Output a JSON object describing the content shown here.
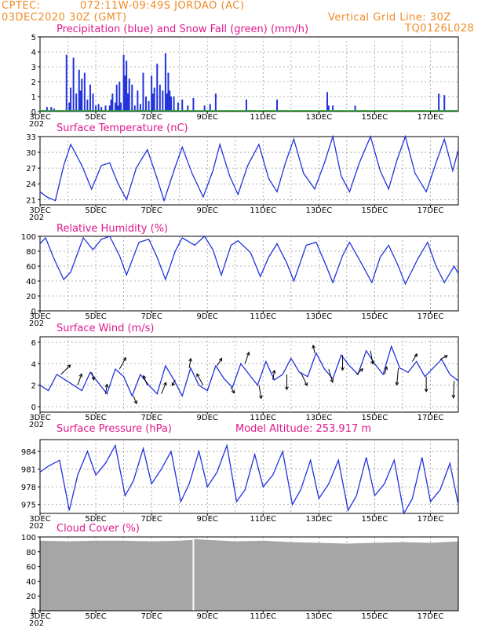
{
  "header": {
    "source": "CPTEC:",
    "location": "072:11W-09:49S  JORDAO (AC)",
    "date": "03DEC2020 30Z (GMT)",
    "grid_note": "Vertical Grid Line: 30Z",
    "code": "TQ0126L028"
  },
  "x_axis": {
    "labels": [
      "3DEC",
      "5DEC",
      "7DEC",
      "9DEC",
      "11DEC",
      "13DEC",
      "15DEC",
      "17DEC"
    ],
    "start_day": 3,
    "end_day": 18,
    "stub_label": "202"
  },
  "colors": {
    "line": "#2233dd",
    "bar": "#2233dd",
    "snow": "#22aa22",
    "cloud": "#a6a6a6",
    "title": "#e0188c",
    "header": "#f08a24",
    "arrow": "#000000"
  },
  "chart_data": [
    {
      "id": "precip",
      "type": "bar",
      "title": "Precipitation (blue) and Snow Fall (green) (mm/h)",
      "ylim": [
        0,
        5
      ],
      "yticks": [
        0,
        1,
        2,
        3,
        4,
        5
      ],
      "x": [
        3.1,
        3.25,
        3.4,
        3.5,
        3.95,
        4.05,
        4.1,
        4.2,
        4.3,
        4.4,
        4.45,
        4.5,
        4.6,
        4.7,
        4.8,
        4.9,
        5.0,
        5.1,
        5.2,
        5.35,
        5.5,
        5.55,
        5.6,
        5.7,
        5.75,
        5.8,
        5.85,
        5.9,
        6.0,
        6.05,
        6.1,
        6.15,
        6.2,
        6.3,
        6.4,
        6.5,
        6.6,
        6.7,
        6.8,
        6.9,
        7.0,
        7.05,
        7.1,
        7.2,
        7.3,
        7.4,
        7.5,
        7.55,
        7.6,
        7.65,
        7.7,
        7.8,
        7.95,
        8.1,
        8.3,
        8.5,
        8.9,
        9.1,
        9.3,
        10.4,
        11.5,
        13.3,
        13.35,
        13.5,
        14.3,
        17.3,
        17.5
      ],
      "values": [
        0.1,
        0.3,
        0.3,
        0.2,
        3.8,
        0.6,
        1.6,
        3.6,
        1.2,
        2.8,
        1.4,
        2.2,
        2.6,
        0.8,
        1.8,
        1.2,
        0.4,
        0.5,
        0.3,
        0.4,
        0.4,
        0.8,
        1.2,
        0.6,
        1.8,
        0.4,
        2.0,
        0.6,
        3.8,
        2.4,
        3.4,
        1.2,
        2.2,
        1.8,
        0.4,
        1.4,
        0.5,
        2.6,
        1.0,
        0.7,
        2.4,
        1.2,
        1.6,
        3.2,
        1.8,
        1.4,
        3.9,
        1.2,
        2.6,
        1.4,
        1.0,
        1.0,
        0.6,
        0.8,
        0.4,
        0.9,
        0.4,
        0.5,
        1.2,
        0.8,
        0.8,
        1.3,
        0.4,
        0.4,
        0.4,
        1.2,
        1.1
      ],
      "snow": "all zero"
    },
    {
      "id": "temp",
      "type": "line",
      "title": "Surface Temperature (nC)",
      "ylim": [
        20,
        33
      ],
      "yticks": [
        21,
        24,
        27,
        30,
        33
      ],
      "x": [
        3.0,
        3.25,
        3.55,
        3.85,
        4.1,
        4.5,
        4.85,
        5.2,
        5.5,
        5.8,
        6.1,
        6.45,
        6.85,
        7.2,
        7.45,
        7.8,
        8.1,
        8.45,
        8.85,
        9.2,
        9.45,
        9.8,
        10.1,
        10.45,
        10.85,
        11.2,
        11.5,
        11.8,
        12.1,
        12.45,
        12.85,
        13.2,
        13.5,
        13.8,
        14.1,
        14.45,
        14.85,
        15.2,
        15.5,
        15.8,
        16.1,
        16.45,
        16.85,
        17.2,
        17.5,
        17.8,
        18.0
      ],
      "values": [
        22.5,
        21.5,
        20.8,
        27.5,
        31.5,
        27.5,
        23.0,
        27.5,
        28.0,
        24.0,
        21.0,
        27.0,
        30.5,
        25.0,
        20.8,
        26.5,
        31.0,
        26.0,
        21.5,
        26.5,
        31.5,
        25.5,
        22.0,
        27.5,
        31.5,
        25.0,
        22.5,
        28.0,
        32.5,
        26.0,
        23.0,
        28.0,
        33.0,
        25.5,
        22.5,
        28.0,
        33.0,
        26.5,
        23.0,
        28.5,
        33.0,
        26.0,
        22.5,
        28.0,
        32.5,
        26.5,
        30.5
      ]
    },
    {
      "id": "rh",
      "type": "line",
      "title": "Relative Humidity (%)",
      "ylim": [
        0,
        100
      ],
      "yticks": [
        0,
        20,
        40,
        60,
        80,
        100
      ],
      "x": [
        3.0,
        3.2,
        3.5,
        3.85,
        4.1,
        4.55,
        4.9,
        5.2,
        5.5,
        5.85,
        6.1,
        6.55,
        6.9,
        7.2,
        7.5,
        7.85,
        8.1,
        8.55,
        8.9,
        9.2,
        9.5,
        9.85,
        10.1,
        10.55,
        10.9,
        11.2,
        11.5,
        11.85,
        12.1,
        12.55,
        12.9,
        13.2,
        13.5,
        13.85,
        14.1,
        14.55,
        14.9,
        15.2,
        15.5,
        15.85,
        16.1,
        16.55,
        16.9,
        17.2,
        17.5,
        17.85,
        18.0
      ],
      "values": [
        90,
        98,
        70,
        42,
        52,
        98,
        82,
        96,
        100,
        74,
        48,
        92,
        96,
        72,
        42,
        80,
        98,
        88,
        100,
        82,
        48,
        88,
        94,
        78,
        46,
        72,
        90,
        64,
        40,
        88,
        92,
        66,
        38,
        74,
        92,
        62,
        38,
        72,
        88,
        60,
        36,
        70,
        92,
        60,
        38,
        60,
        50
      ]
    },
    {
      "id": "wind",
      "type": "line",
      "title": "Surface Wind (m/s)",
      "ylim": [
        -0.5,
        6.5
      ],
      "yticks": [
        0,
        2,
        4,
        6
      ],
      "x": [
        3.0,
        3.3,
        3.6,
        3.9,
        4.2,
        4.5,
        4.8,
        5.1,
        5.4,
        5.7,
        6.0,
        6.3,
        6.6,
        6.9,
        7.2,
        7.5,
        7.8,
        8.1,
        8.4,
        8.7,
        9.0,
        9.3,
        9.6,
        9.9,
        10.2,
        10.5,
        10.8,
        11.1,
        11.4,
        11.7,
        12.0,
        12.3,
        12.6,
        12.9,
        13.2,
        13.5,
        13.8,
        14.1,
        14.4,
        14.7,
        15.0,
        15.3,
        15.6,
        15.9,
        16.2,
        16.5,
        16.8,
        17.1,
        17.4,
        17.7,
        18.0
      ],
      "values": [
        2.0,
        1.5,
        3.0,
        2.5,
        2.0,
        1.5,
        3.2,
        2.2,
        1.2,
        3.5,
        2.8,
        1.0,
        3.0,
        2.0,
        1.2,
        3.8,
        2.5,
        1.0,
        3.6,
        2.0,
        1.5,
        3.8,
        2.6,
        1.8,
        4.0,
        3.0,
        2.0,
        4.2,
        2.5,
        3.0,
        4.5,
        3.2,
        2.8,
        5.0,
        3.5,
        2.6,
        4.8,
        3.8,
        3.0,
        5.2,
        4.0,
        3.0,
        5.6,
        3.6,
        3.2,
        4.2,
        2.8,
        3.6,
        4.4,
        3.0,
        2.4
      ],
      "arrows_x": [
        3.75,
        4.35,
        4.85,
        5.35,
        5.85,
        6.35,
        6.85,
        7.35,
        7.85,
        8.35,
        8.85,
        9.35,
        9.85,
        10.35,
        10.85,
        11.35,
        11.85,
        12.35,
        12.85,
        13.35,
        13.85,
        14.35,
        14.85,
        15.35,
        15.85,
        16.35,
        16.85,
        17.35,
        17.85
      ],
      "arrows_u": [
        1.2,
        0.5,
        0.3,
        0.2,
        0.8,
        0.4,
        -0.5,
        0.6,
        -0.4,
        0.2,
        -0.8,
        0.6,
        0.4,
        0.5,
        0.3,
        0.2,
        0.0,
        0.8,
        -0.2,
        0.5,
        0.0,
        0.8,
        0.3,
        0.3,
        -0.2,
        0.6,
        0.0,
        0.9,
        -0.1
      ],
      "arrows_v": [
        1.0,
        1.2,
        -0.8,
        1.0,
        1.2,
        -0.8,
        1.0,
        1.2,
        -0.6,
        1.0,
        1.2,
        0.8,
        -0.6,
        1.2,
        -1.4,
        1.0,
        -1.6,
        -1.4,
        0.8,
        -1.4,
        -1.6,
        0.6,
        -1.4,
        0.8,
        -1.8,
        0.8,
        -1.6,
        0.4,
        -1.8
      ]
    },
    {
      "id": "pres",
      "type": "line",
      "title": "Surface Pressure (hPa)",
      "subtitle": "Model Altitude: 253.917 m",
      "ylim": [
        973.5,
        986
      ],
      "yticks": [
        975,
        978,
        981,
        984
      ],
      "x": [
        3.0,
        3.3,
        3.7,
        4.05,
        4.35,
        4.7,
        5.0,
        5.35,
        5.7,
        6.05,
        6.35,
        6.7,
        7.0,
        7.35,
        7.7,
        8.05,
        8.35,
        8.7,
        9.0,
        9.35,
        9.7,
        10.05,
        10.35,
        10.7,
        11.0,
        11.35,
        11.7,
        12.05,
        12.35,
        12.7,
        13.0,
        13.35,
        13.7,
        14.05,
        14.35,
        14.7,
        15.0,
        15.35,
        15.7,
        16.05,
        16.35,
        16.7,
        17.0,
        17.35,
        17.7,
        18.0
      ],
      "values": [
        980.5,
        981.5,
        982.5,
        974.0,
        980.0,
        984.0,
        980.0,
        982.0,
        985.0,
        976.5,
        979.0,
        984.5,
        978.5,
        981.0,
        984.0,
        975.5,
        978.5,
        984.0,
        978.0,
        980.5,
        985.0,
        975.5,
        977.5,
        983.5,
        978.0,
        980.0,
        984.0,
        975.0,
        977.5,
        982.5,
        976.0,
        978.5,
        982.5,
        974.0,
        976.5,
        983.0,
        976.5,
        978.5,
        982.5,
        973.5,
        976.0,
        983.0,
        975.5,
        977.5,
        982.0,
        975.0
      ]
    },
    {
      "id": "cloud",
      "type": "area",
      "title": "Cloud Cover (%)",
      "ylim": [
        0,
        100
      ],
      "yticks": [
        0,
        20,
        40,
        60,
        80,
        100
      ],
      "x": [
        3.0,
        4.0,
        5.0,
        6.0,
        7.0,
        8.0,
        8.5,
        8.55,
        9.0,
        10.0,
        11.0,
        12.0,
        13.0,
        14.0,
        15.0,
        16.0,
        17.0,
        18.0
      ],
      "values": [
        95,
        94,
        95,
        95,
        94,
        95,
        96,
        97,
        96,
        94,
        95,
        93,
        92,
        91,
        92,
        93,
        92,
        94
      ],
      "gap_x": 8.5
    }
  ]
}
